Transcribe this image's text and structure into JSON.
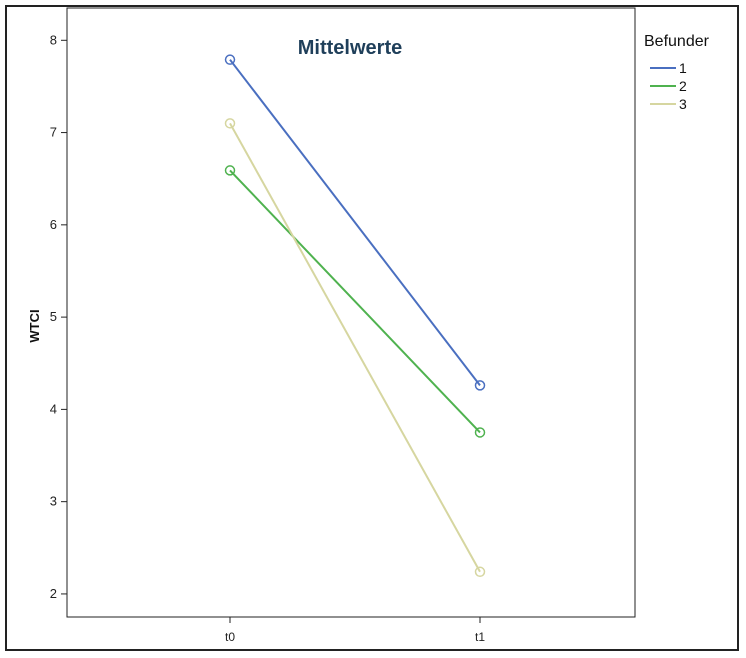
{
  "chart_data": {
    "type": "line",
    "title": "Mittelwerte",
    "xlabel": "",
    "ylabel": "WTCI",
    "categories": [
      "t0",
      "t1"
    ],
    "ylim": [
      1.75,
      8.35
    ],
    "yticks": [
      2,
      3,
      4,
      5,
      6,
      7,
      8
    ],
    "grid": false,
    "legend": {
      "title": "Befunder",
      "placement": "top-right outside"
    },
    "series": [
      {
        "name": "1",
        "values": [
          7.79,
          4.26
        ],
        "color": "#4a6fc0"
      },
      {
        "name": "2",
        "values": [
          6.59,
          3.75
        ],
        "color": "#4fb24f"
      },
      {
        "name": "3",
        "values": [
          7.1,
          2.24
        ],
        "color": "#d6d6a0"
      }
    ],
    "marker": "circle"
  }
}
